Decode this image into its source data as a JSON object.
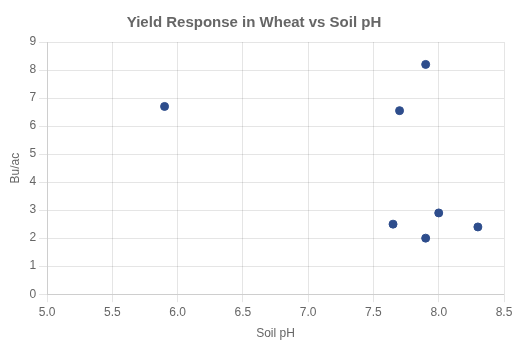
{
  "chart_data": {
    "type": "scatter",
    "title": "Yield Response in Wheat vs Soil pH",
    "xlabel": "Soil pH",
    "ylabel": "Bu/ac",
    "x": [
      5.9,
      7.65,
      7.7,
      7.9,
      7.9,
      8.0,
      8.3
    ],
    "values": [
      6.7,
      2.5,
      6.55,
      2.0,
      8.2,
      2.9,
      2.4
    ],
    "color": "#2e4d8c",
    "xlim": [
      5.0,
      8.5
    ],
    "ylim": [
      0,
      9
    ],
    "xticks": [
      {
        "value": 5.0,
        "label": "5.0"
      },
      5.5,
      {
        "value": 6.0,
        "label": "6.0"
      },
      6.5,
      {
        "value": 7.0,
        "label": "7.0"
      },
      7.5,
      {
        "value": 8.0,
        "label": "8.0"
      },
      8.5
    ],
    "yticks": [
      0,
      1,
      2,
      3,
      4,
      5,
      6,
      7,
      8,
      9
    ],
    "grid": true
  }
}
